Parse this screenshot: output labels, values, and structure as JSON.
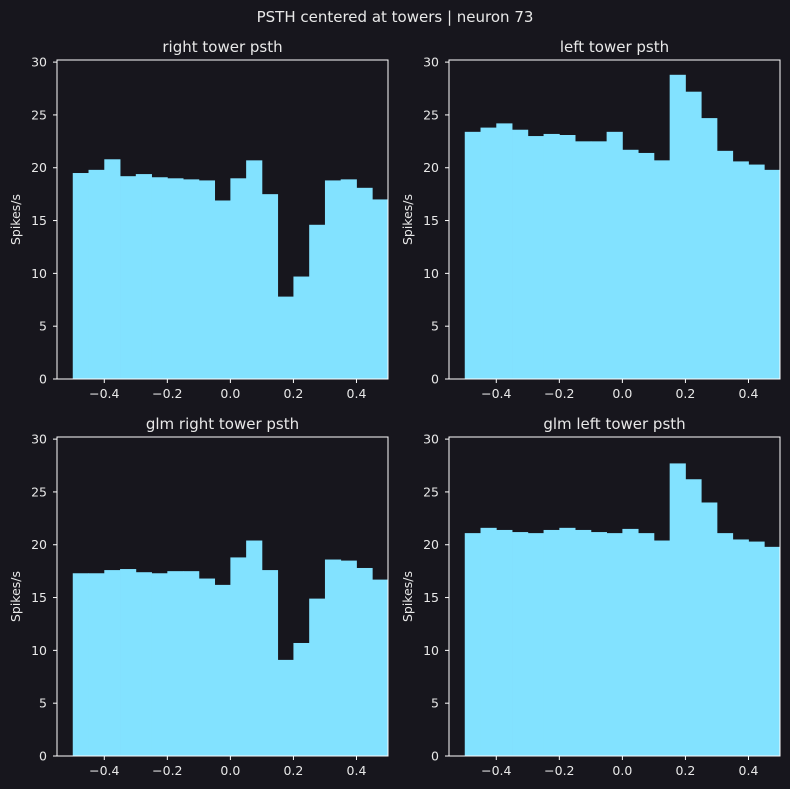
{
  "suptitle": "PSTH centered at towers | neuron 73",
  "colors": {
    "background": "#17161d",
    "bar": "#82e2ff",
    "axis": "#ffffff",
    "text": "#e8e8e8"
  },
  "chart_data": [
    {
      "type": "bar",
      "title": "right tower psth",
      "ylabel": "Spikes/s",
      "xlabel": "",
      "xlim": [
        -0.55,
        0.5
      ],
      "ylim": [
        0,
        30.2
      ],
      "bin_width": 0.05,
      "x": [
        -0.5,
        -0.45,
        -0.4,
        -0.35,
        -0.3,
        -0.25,
        -0.2,
        -0.15,
        -0.1,
        -0.05,
        0.0,
        0.05,
        0.1,
        0.15,
        0.2,
        0.25,
        0.3,
        0.35,
        0.4,
        0.45
      ],
      "values": [
        19.5,
        19.8,
        20.8,
        19.2,
        19.4,
        19.1,
        19.0,
        18.9,
        18.8,
        16.9,
        19.0,
        20.7,
        17.5,
        7.8,
        9.7,
        14.6,
        18.8,
        18.9,
        18.1,
        17.0
      ],
      "xticks": [
        -0.4,
        -0.2,
        0.0,
        0.2,
        0.4
      ],
      "xtick_labels": [
        "−0.4",
        "−0.2",
        "0.0",
        "0.2",
        "0.4"
      ],
      "yticks": [
        0,
        5,
        10,
        15,
        20,
        25,
        30
      ],
      "ytick_labels": [
        "0",
        "5",
        "10",
        "15",
        "20",
        "25",
        "30"
      ]
    },
    {
      "type": "bar",
      "title": "left tower psth",
      "ylabel": "Spikes/s",
      "xlabel": "",
      "xlim": [
        -0.55,
        0.5
      ],
      "ylim": [
        0,
        30.2
      ],
      "bin_width": 0.05,
      "x": [
        -0.5,
        -0.45,
        -0.4,
        -0.35,
        -0.3,
        -0.25,
        -0.2,
        -0.15,
        -0.1,
        -0.05,
        0.0,
        0.05,
        0.1,
        0.15,
        0.2,
        0.25,
        0.3,
        0.35,
        0.4,
        0.45
      ],
      "values": [
        23.4,
        23.8,
        24.2,
        23.6,
        23.0,
        23.2,
        23.1,
        22.5,
        22.5,
        23.4,
        21.7,
        21.4,
        20.7,
        28.8,
        27.2,
        24.7,
        21.6,
        20.6,
        20.3,
        19.8
      ],
      "xticks": [
        -0.4,
        -0.2,
        0.0,
        0.2,
        0.4
      ],
      "xtick_labels": [
        "−0.4",
        "−0.2",
        "0.0",
        "0.2",
        "0.4"
      ],
      "yticks": [
        0,
        5,
        10,
        15,
        20,
        25,
        30
      ],
      "ytick_labels": [
        "0",
        "5",
        "10",
        "15",
        "20",
        "25",
        "30"
      ]
    },
    {
      "type": "bar",
      "title": "glm right tower psth",
      "ylabel": "Spikes/s",
      "xlabel": "",
      "xlim": [
        -0.55,
        0.5
      ],
      "ylim": [
        0,
        30.2
      ],
      "bin_width": 0.05,
      "x": [
        -0.5,
        -0.45,
        -0.4,
        -0.35,
        -0.3,
        -0.25,
        -0.2,
        -0.15,
        -0.1,
        -0.05,
        0.0,
        0.05,
        0.1,
        0.15,
        0.2,
        0.25,
        0.3,
        0.35,
        0.4,
        0.45
      ],
      "values": [
        17.3,
        17.3,
        17.6,
        17.7,
        17.4,
        17.3,
        17.5,
        17.5,
        16.8,
        16.2,
        18.8,
        20.4,
        17.6,
        9.1,
        10.7,
        14.9,
        18.6,
        18.5,
        17.8,
        16.7
      ],
      "xticks": [
        -0.4,
        -0.2,
        0.0,
        0.2,
        0.4
      ],
      "xtick_labels": [
        "−0.4",
        "−0.2",
        "0.0",
        "0.2",
        "0.4"
      ],
      "yticks": [
        0,
        5,
        10,
        15,
        20,
        25,
        30
      ],
      "ytick_labels": [
        "0",
        "5",
        "10",
        "15",
        "20",
        "25",
        "30"
      ]
    },
    {
      "type": "bar",
      "title": "glm left tower psth",
      "ylabel": "Spikes/s",
      "xlabel": "",
      "xlim": [
        -0.55,
        0.5
      ],
      "ylim": [
        0,
        30.2
      ],
      "bin_width": 0.05,
      "x": [
        -0.5,
        -0.45,
        -0.4,
        -0.35,
        -0.3,
        -0.25,
        -0.2,
        -0.15,
        -0.1,
        -0.05,
        0.0,
        0.05,
        0.1,
        0.15,
        0.2,
        0.25,
        0.3,
        0.35,
        0.4,
        0.45
      ],
      "values": [
        21.1,
        21.6,
        21.4,
        21.2,
        21.1,
        21.4,
        21.6,
        21.4,
        21.2,
        21.1,
        21.5,
        21.1,
        20.4,
        27.7,
        26.2,
        24.0,
        21.1,
        20.5,
        20.3,
        19.8
      ],
      "xticks": [
        -0.4,
        -0.2,
        0.0,
        0.2,
        0.4
      ],
      "xtick_labels": [
        "−0.4",
        "−0.2",
        "0.0",
        "0.2",
        "0.4"
      ],
      "yticks": [
        0,
        5,
        10,
        15,
        20,
        25,
        30
      ],
      "ytick_labels": [
        "0",
        "5",
        "10",
        "15",
        "20",
        "25",
        "30"
      ]
    }
  ]
}
